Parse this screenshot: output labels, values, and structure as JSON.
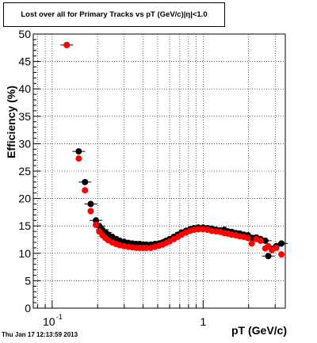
{
  "chart_data": {
    "type": "scatter",
    "title": "Lost over all for Primary Tracks vs pT (GeV/c)|η|<1.0",
    "xlabel": "pT (GeV/c)",
    "ylabel": "Efficiency (%)",
    "xscale": "log",
    "xlim": [
      0.075,
      3.5
    ],
    "ylim": [
      0,
      50
    ],
    "grid": true,
    "x_ticks": [
      {
        "value": 0.1,
        "label": "10",
        "exp": "-1"
      },
      {
        "value": 1,
        "label": "1",
        "exp": ""
      }
    ],
    "y_ticks": [
      0,
      5,
      10,
      15,
      20,
      25,
      30,
      35,
      40,
      45,
      50
    ],
    "series": [
      {
        "color": "#000000",
        "points": [
          [
            0.125,
            48.0
          ],
          [
            0.15,
            28.6
          ],
          [
            0.165,
            23.0
          ],
          [
            0.18,
            19.0
          ],
          [
            0.195,
            16.0
          ],
          [
            0.205,
            15.0
          ],
          [
            0.215,
            14.3
          ],
          [
            0.225,
            13.8
          ],
          [
            0.235,
            13.4
          ],
          [
            0.25,
            13.0
          ],
          [
            0.265,
            12.6
          ],
          [
            0.28,
            12.3
          ],
          [
            0.3,
            12.1
          ],
          [
            0.32,
            11.9
          ],
          [
            0.34,
            11.8
          ],
          [
            0.36,
            11.7
          ],
          [
            0.38,
            11.7
          ],
          [
            0.4,
            11.6
          ],
          [
            0.42,
            11.6
          ],
          [
            0.45,
            11.6
          ],
          [
            0.48,
            11.7
          ],
          [
            0.51,
            11.8
          ],
          [
            0.54,
            12.0
          ],
          [
            0.57,
            12.3
          ],
          [
            0.6,
            12.6
          ],
          [
            0.64,
            13.0
          ],
          [
            0.68,
            13.4
          ],
          [
            0.72,
            13.8
          ],
          [
            0.77,
            14.1
          ],
          [
            0.82,
            14.4
          ],
          [
            0.87,
            14.6
          ],
          [
            0.93,
            14.7
          ],
          [
            1.0,
            14.7
          ],
          [
            1.07,
            14.6
          ],
          [
            1.14,
            14.5
          ],
          [
            1.22,
            14.3
          ],
          [
            1.3,
            14.2
          ],
          [
            1.38,
            14.3
          ],
          [
            1.46,
            14.0
          ],
          [
            1.55,
            13.9
          ],
          [
            1.65,
            13.7
          ],
          [
            1.75,
            13.6
          ],
          [
            1.86,
            13.4
          ],
          [
            1.98,
            13.3
          ],
          [
            2.1,
            12.8
          ],
          [
            2.25,
            12.9
          ],
          [
            2.4,
            12.6
          ],
          [
            2.58,
            12.3
          ],
          [
            2.7,
            9.5
          ],
          [
            2.85,
            10.8
          ],
          [
            3.05,
            11.3
          ],
          [
            3.3,
            11.8
          ]
        ]
      },
      {
        "color": "#ff0000",
        "points": [
          [
            0.125,
            48.0
          ],
          [
            0.15,
            27.3
          ],
          [
            0.165,
            21.5
          ],
          [
            0.18,
            17.7
          ],
          [
            0.195,
            15.2
          ],
          [
            0.205,
            14.0
          ],
          [
            0.215,
            13.3
          ],
          [
            0.225,
            12.8
          ],
          [
            0.235,
            12.4
          ],
          [
            0.25,
            12.0
          ],
          [
            0.265,
            11.7
          ],
          [
            0.28,
            11.5
          ],
          [
            0.3,
            11.3
          ],
          [
            0.32,
            11.2
          ],
          [
            0.34,
            11.1
          ],
          [
            0.36,
            11.0
          ],
          [
            0.38,
            11.0
          ],
          [
            0.4,
            11.0
          ],
          [
            0.42,
            11.0
          ],
          [
            0.45,
            11.0
          ],
          [
            0.48,
            11.2
          ],
          [
            0.51,
            11.4
          ],
          [
            0.54,
            11.6
          ],
          [
            0.57,
            11.9
          ],
          [
            0.6,
            12.2
          ],
          [
            0.64,
            12.6
          ],
          [
            0.68,
            13.0
          ],
          [
            0.72,
            13.4
          ],
          [
            0.77,
            13.8
          ],
          [
            0.82,
            14.1
          ],
          [
            0.87,
            14.3
          ],
          [
            0.93,
            14.4
          ],
          [
            1.0,
            14.4
          ],
          [
            1.07,
            14.3
          ],
          [
            1.14,
            14.1
          ],
          [
            1.22,
            14.0
          ],
          [
            1.3,
            13.9
          ],
          [
            1.38,
            13.7
          ],
          [
            1.46,
            13.6
          ],
          [
            1.55,
            13.4
          ],
          [
            1.65,
            13.3
          ],
          [
            1.75,
            13.1
          ],
          [
            1.86,
            13.0
          ],
          [
            1.98,
            12.8
          ],
          [
            2.1,
            11.8
          ],
          [
            2.25,
            12.6
          ],
          [
            2.4,
            12.3
          ],
          [
            2.58,
            10.9
          ],
          [
            2.7,
            11.3
          ],
          [
            2.85,
            10.6
          ],
          [
            3.05,
            11.0
          ],
          [
            3.3,
            9.8
          ]
        ]
      }
    ]
  },
  "footer": {
    "timestamp": "Thu Jan 17 12:13:59 2013"
  }
}
